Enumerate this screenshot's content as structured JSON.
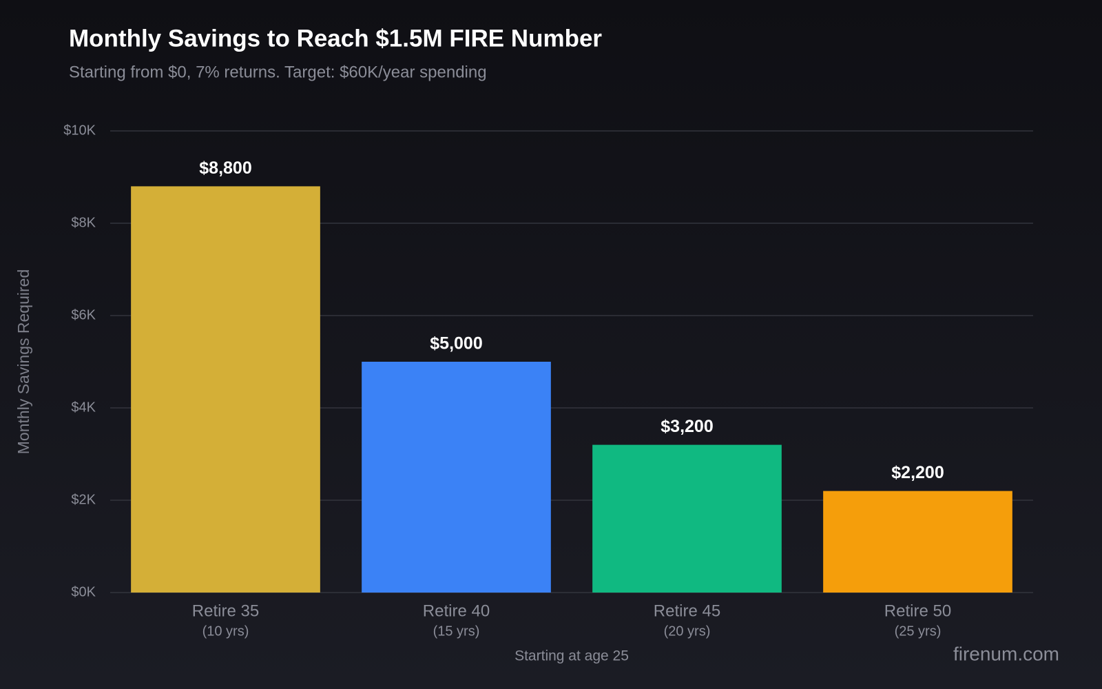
{
  "chart_data": {
    "type": "bar",
    "title": "Monthly Savings to Reach $1.5M FIRE Number",
    "subtitle": "Starting from $0, 7% returns. Target: $60K/year spending",
    "y_label": "Monthly Savings Required",
    "x_label": "Starting at age 25",
    "watermark": "firenum.com",
    "categories": [
      "Retire 35",
      "Retire 40",
      "Retire 45",
      "Retire 50"
    ],
    "category_sublabels": [
      "(10 yrs)",
      "(15 yrs)",
      "(20 yrs)",
      "(25 yrs)"
    ],
    "values": [
      8800,
      5000,
      3200,
      2200
    ],
    "value_labels": [
      "$8,800",
      "$5,000",
      "$3,200",
      "$2,200"
    ],
    "colors": [
      "#d4af37",
      "#3b82f6",
      "#10b981",
      "#f59e0b"
    ],
    "ylim": [
      0,
      10000
    ],
    "yticks": [
      {
        "value": 0,
        "label": "$0K"
      },
      {
        "value": 2000,
        "label": "$2K"
      },
      {
        "value": 4000,
        "label": "$4K"
      },
      {
        "value": 6000,
        "label": "$6K"
      },
      {
        "value": 8000,
        "label": "$8K"
      },
      {
        "value": 10000,
        "label": "$10K"
      }
    ],
    "grid": true
  }
}
